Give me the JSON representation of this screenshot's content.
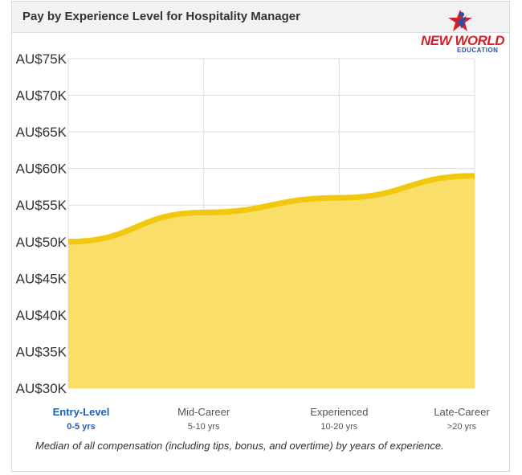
{
  "header": {
    "title": "Pay by Experience Level for Hospitality Manager"
  },
  "logo": {
    "text": "NEW WORLD",
    "sub": "EDUCATION",
    "icon": "star-person-icon"
  },
  "caption": "Median of all compensation (including tips, bonus, and overtime) by years of experience.",
  "colors": {
    "fill": "#f9de6a",
    "line": "#f2c80f",
    "active_label": "#1f5fb3",
    "grid": "#dddddd"
  },
  "chart_data": {
    "type": "area",
    "title": "Pay by Experience Level for Hospitality Manager",
    "categories": [
      "Entry-Level",
      "Mid-Career",
      "Experienced",
      "Late-Career"
    ],
    "category_sublabels": [
      "0-5 yrs",
      "5-10 yrs",
      "10-20 yrs",
      ">20 yrs"
    ],
    "active_category": 0,
    "values": [
      50000,
      54000,
      56000,
      59000
    ],
    "ylim": [
      30000,
      75000
    ],
    "y_ticks": [
      30000,
      35000,
      40000,
      45000,
      50000,
      55000,
      60000,
      65000,
      70000,
      75000
    ],
    "y_tick_labels": [
      "AU$30K",
      "AU$35K",
      "AU$40K",
      "AU$45K",
      "AU$50K",
      "AU$55K",
      "AU$60K",
      "AU$65K",
      "AU$70K",
      "AU$75K"
    ],
    "grid": true,
    "legend": "none",
    "xlabel": "",
    "ylabel": ""
  }
}
